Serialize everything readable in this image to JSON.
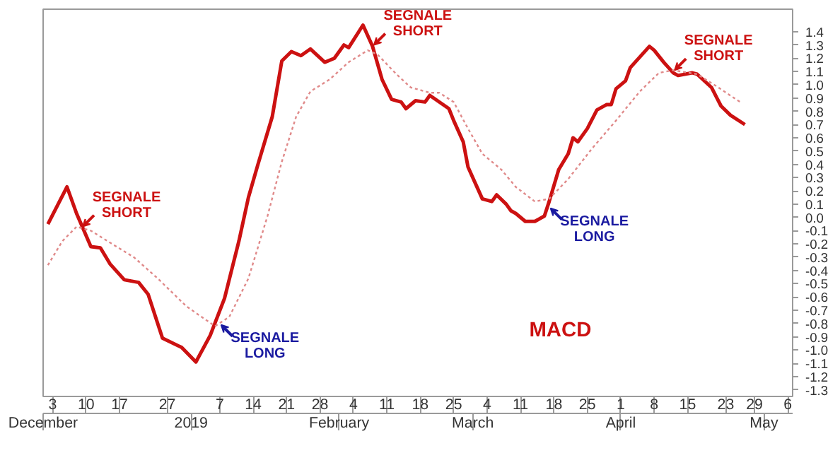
{
  "chart_data": {
    "type": "line",
    "x": [
      "2018-12-02",
      "2018-12-06",
      "2018-12-08",
      "2018-12-11",
      "2018-12-13",
      "2018-12-15",
      "2018-12-18",
      "2018-12-21",
      "2018-12-23",
      "2018-12-26",
      "2018-12-30",
      "2019-01-02",
      "2019-01-05",
      "2019-01-08",
      "2019-01-11",
      "2019-01-13",
      "2019-01-15",
      "2019-01-18",
      "2019-01-20",
      "2019-01-22",
      "2019-01-24",
      "2019-01-26",
      "2019-01-29",
      "2019-01-31",
      "2019-02-02",
      "2019-02-03",
      "2019-02-06",
      "2019-02-08",
      "2019-02-10",
      "2019-02-12",
      "2019-02-14",
      "2019-02-15",
      "2019-02-17",
      "2019-02-19",
      "2019-02-20",
      "2019-02-24",
      "2019-02-25",
      "2019-02-27",
      "2019-02-28",
      "2019-03-02",
      "2019-03-03",
      "2019-03-05",
      "2019-03-06",
      "2019-03-08",
      "2019-03-09",
      "2019-03-10",
      "2019-03-12",
      "2019-03-14",
      "2019-03-16",
      "2019-03-17",
      "2019-03-19",
      "2019-03-21",
      "2019-03-22",
      "2019-03-23",
      "2019-03-25",
      "2019-03-27",
      "2019-03-29",
      "2019-03-30",
      "2019-03-31",
      "2019-04-02",
      "2019-04-03",
      "2019-04-05",
      "2019-04-07",
      "2019-04-08",
      "2019-04-10",
      "2019-04-12",
      "2019-04-13",
      "2019-04-16",
      "2019-04-17",
      "2019-04-20",
      "2019-04-22",
      "2019-04-24",
      "2019-04-27"
    ],
    "series": [
      {
        "name": "MACD",
        "color": "#cc1111",
        "line_style": "solid",
        "values": [
          -0.05,
          0.23,
          0.03,
          -0.22,
          -0.23,
          -0.35,
          -0.47,
          -0.49,
          -0.58,
          -0.91,
          -0.98,
          -1.09,
          -0.89,
          -0.61,
          -0.18,
          0.15,
          0.4,
          0.76,
          1.18,
          1.25,
          1.22,
          1.27,
          1.17,
          1.2,
          1.3,
          1.28,
          1.45,
          1.29,
          1.04,
          0.89,
          0.87,
          0.82,
          0.88,
          0.87,
          0.92,
          0.82,
          0.73,
          0.57,
          0.38,
          0.22,
          0.14,
          0.12,
          0.17,
          0.1,
          0.05,
          0.03,
          -0.03,
          -0.03,
          0.01,
          0.12,
          0.36,
          0.48,
          0.6,
          0.57,
          0.67,
          0.81,
          0.85,
          0.85,
          0.97,
          1.03,
          1.13,
          1.21,
          1.29,
          1.26,
          1.17,
          1.09,
          1.07,
          1.09,
          1.08,
          0.98,
          0.84,
          0.77,
          0.7
        ]
      },
      {
        "color": "#e08a8a",
        "line_style": "dotted",
        "x": [
          "2018-12-02",
          "2018-12-05",
          "2018-12-08",
          "2018-12-11",
          "2018-12-15",
          "2018-12-20",
          "2018-12-25",
          "2018-12-31",
          "2019-01-06",
          "2019-01-09",
          "2019-01-13",
          "2019-01-17",
          "2019-01-20",
          "2019-01-23",
          "2019-01-26",
          "2019-01-30",
          "2019-02-03",
          "2019-02-07",
          "2019-02-09",
          "2019-02-13",
          "2019-02-16",
          "2019-02-20",
          "2019-02-22",
          "2019-02-25",
          "2019-02-28",
          "2019-03-03",
          "2019-03-07",
          "2019-03-10",
          "2019-03-14",
          "2019-03-17",
          "2019-03-21",
          "2019-03-26",
          "2019-03-31",
          "2019-04-05",
          "2019-04-09",
          "2019-04-12",
          "2019-04-17",
          "2019-04-21",
          "2019-04-26"
        ],
        "values": [
          -0.36,
          -0.18,
          -0.07,
          -0.1,
          -0.19,
          -0.3,
          -0.46,
          -0.67,
          -0.82,
          -0.75,
          -0.46,
          0.01,
          0.42,
          0.76,
          0.95,
          1.04,
          1.17,
          1.26,
          1.23,
          1.08,
          0.98,
          0.94,
          0.94,
          0.87,
          0.67,
          0.48,
          0.36,
          0.23,
          0.12,
          0.14,
          0.29,
          0.52,
          0.73,
          0.95,
          1.09,
          1.11,
          1.08,
          0.99,
          0.87
        ]
      }
    ],
    "annotations": [
      {
        "text": "SEGNALE\nSHORT",
        "x": "2018-12-09",
        "y": -0.08
      },
      {
        "text": "SEGNALE\nLONG",
        "x": "2019-01-07",
        "y": -0.8
      },
      {
        "text": "SEGNALE\nSHORT",
        "x": "2019-02-08",
        "y": 1.29
      },
      {
        "text": "SEGNALE\nLONG",
        "x": "2019-03-17",
        "y": 0.08
      },
      {
        "text": "SEGNALE\nSHORT",
        "x": "2019-04-12",
        "y": 1.1
      }
    ],
    "xlim": [
      "2018-12-01",
      "2019-05-07"
    ],
    "xticks": [
      {
        "value": "2018-12-03",
        "label": "3"
      },
      {
        "value": "2018-12-10",
        "label": "10"
      },
      {
        "value": "2018-12-17",
        "label": "17"
      },
      {
        "value": "2018-12-27",
        "label": "27"
      },
      {
        "value": "2019-01-07",
        "label": "7"
      },
      {
        "value": "2019-01-14",
        "label": "14"
      },
      {
        "value": "2019-01-21",
        "label": "21"
      },
      {
        "value": "2019-01-28",
        "label": "28"
      },
      {
        "value": "2019-02-04",
        "label": "4"
      },
      {
        "value": "2019-02-11",
        "label": "11"
      },
      {
        "value": "2019-02-18",
        "label": "18"
      },
      {
        "value": "2019-02-25",
        "label": "25"
      },
      {
        "value": "2019-03-04",
        "label": "4"
      },
      {
        "value": "2019-03-11",
        "label": "11"
      },
      {
        "value": "2019-03-18",
        "label": "18"
      },
      {
        "value": "2019-03-25",
        "label": "25"
      },
      {
        "value": "2019-04-01",
        "label": "1"
      },
      {
        "value": "2019-04-08",
        "label": "8"
      },
      {
        "value": "2019-04-15",
        "label": "15"
      },
      {
        "value": "2019-04-23",
        "label": "23"
      },
      {
        "value": "2019-04-29",
        "label": "29"
      },
      {
        "value": "2019-05-06",
        "label": "6"
      }
    ],
    "x2lim": [
      "2018-12-01",
      "2019-05-07"
    ],
    "x2ticks": [
      {
        "value": "2018-12-01",
        "label": "December"
      },
      {
        "value": "2019-01-01",
        "label": "2019"
      },
      {
        "value": "2019-02-01",
        "label": "February"
      },
      {
        "value": "2019-03-01",
        "label": "March"
      },
      {
        "value": "2019-04-01",
        "label": "April"
      },
      {
        "value": "2019-05-01",
        "label": "May"
      }
    ],
    "ylim": [
      -1.35,
      1.57
    ],
    "yticks": [
      -1.3,
      -1.2,
      -1.1,
      {
        "value": -1,
        "label": "-1.0"
      },
      -0.9,
      -0.8,
      -0.7,
      -0.6,
      -0.5,
      -0.4,
      -0.3,
      -0.2,
      -0.1,
      {
        "value": 0,
        "label": "0.0"
      },
      0.1,
      0.2,
      0.3,
      0.4,
      0.5,
      0.6,
      0.7,
      0.8,
      0.9,
      {
        "value": 1,
        "label": "1.0"
      },
      1.1,
      1.2,
      1.3,
      1.4
    ],
    "grid": false,
    "marker": "none"
  }
}
